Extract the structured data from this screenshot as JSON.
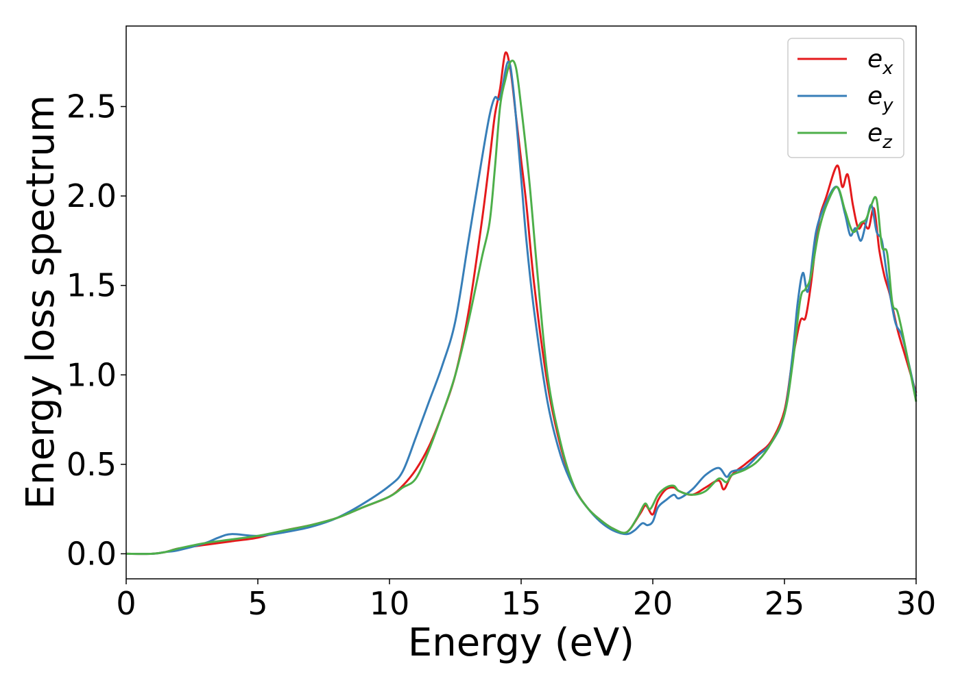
{
  "chart_data": {
    "type": "line",
    "title": "",
    "xlabel": "Energy (eV)",
    "ylabel": "Energy loss spectrum",
    "xlim": [
      0,
      30
    ],
    "ylim": [
      -0.14,
      2.95
    ],
    "xticks": [
      "0",
      "5",
      "10",
      "15",
      "20",
      "25",
      "30"
    ],
    "yticks": [
      "0.0",
      "0.5",
      "1.0",
      "1.5",
      "2.0",
      "2.5"
    ],
    "grid": false,
    "legend_position": "top-right",
    "series": [
      {
        "name": "e_x",
        "label_base": "e",
        "label_sub": "x",
        "color": "#e41a1c",
        "x": [
          0,
          1,
          1.5,
          2,
          3,
          4,
          5,
          6,
          7,
          8,
          9,
          10,
          10.5,
          11,
          11.5,
          12,
          12.5,
          13,
          13.5,
          13.8,
          14,
          14.2,
          14.4,
          14.6,
          14.8,
          15,
          15.2,
          15.5,
          16,
          16.5,
          17,
          17.5,
          18,
          18.5,
          19,
          19.5,
          19.7,
          19.8,
          20,
          20.2,
          20.5,
          20.8,
          21,
          21.5,
          22,
          22.5,
          22.7,
          23,
          23.5,
          24,
          24.5,
          25,
          25.3,
          25.6,
          25.8,
          26,
          26.3,
          26.6,
          27,
          27.2,
          27.4,
          27.6,
          27.8,
          28,
          28.2,
          28.4,
          28.6,
          28.8,
          29,
          29.3,
          29.6,
          30
        ],
        "y": [
          0,
          0,
          0.01,
          0.03,
          0.05,
          0.07,
          0.09,
          0.13,
          0.16,
          0.2,
          0.26,
          0.32,
          0.38,
          0.47,
          0.6,
          0.78,
          1.0,
          1.35,
          1.85,
          2.2,
          2.45,
          2.6,
          2.8,
          2.7,
          2.45,
          2.2,
          1.95,
          1.5,
          0.95,
          0.6,
          0.38,
          0.26,
          0.19,
          0.14,
          0.12,
          0.22,
          0.27,
          0.26,
          0.22,
          0.3,
          0.36,
          0.37,
          0.35,
          0.33,
          0.37,
          0.41,
          0.36,
          0.44,
          0.5,
          0.56,
          0.63,
          0.8,
          1.08,
          1.3,
          1.32,
          1.5,
          1.85,
          2.0,
          2.17,
          2.05,
          2.12,
          1.95,
          1.82,
          1.85,
          1.82,
          1.93,
          1.7,
          1.55,
          1.45,
          1.25,
          1.1,
          0.9
        ]
      },
      {
        "name": "e_y",
        "label_base": "e",
        "label_sub": "y",
        "color": "#377eb8",
        "x": [
          0,
          1,
          1.5,
          2,
          3,
          3.5,
          4,
          5,
          6,
          7,
          8,
          9,
          10,
          10.5,
          11,
          11.5,
          12,
          12.5,
          13,
          13.5,
          13.8,
          14,
          14.2,
          14.5,
          14.7,
          15,
          15.2,
          15.5,
          16,
          16.5,
          17,
          17.5,
          18,
          18.5,
          19,
          19.3,
          19.6,
          19.8,
          20,
          20.2,
          20.5,
          20.8,
          21,
          21.5,
          22,
          22.5,
          22.8,
          23,
          23.5,
          24,
          24.5,
          25,
          25.3,
          25.5,
          25.7,
          25.9,
          26.2,
          26.6,
          27,
          27.3,
          27.5,
          27.7,
          27.9,
          28.1,
          28.3,
          28.5,
          28.7,
          28.9,
          29.2,
          29.5,
          30
        ],
        "y": [
          0,
          0,
          0.01,
          0.02,
          0.06,
          0.09,
          0.11,
          0.1,
          0.12,
          0.15,
          0.2,
          0.28,
          0.38,
          0.46,
          0.65,
          0.85,
          1.05,
          1.3,
          1.75,
          2.2,
          2.45,
          2.55,
          2.55,
          2.75,
          2.6,
          2.1,
          1.75,
          1.35,
          0.85,
          0.55,
          0.37,
          0.26,
          0.18,
          0.13,
          0.11,
          0.13,
          0.17,
          0.16,
          0.18,
          0.26,
          0.3,
          0.33,
          0.31,
          0.36,
          0.44,
          0.48,
          0.43,
          0.46,
          0.48,
          0.55,
          0.62,
          0.78,
          1.1,
          1.4,
          1.57,
          1.47,
          1.8,
          1.97,
          2.05,
          1.9,
          1.78,
          1.82,
          1.75,
          1.85,
          1.95,
          1.8,
          1.75,
          1.55,
          1.3,
          1.2,
          0.88
        ]
      },
      {
        "name": "e_z",
        "label_base": "e",
        "label_sub": "z",
        "color": "#4daf4a",
        "x": [
          0,
          1,
          1.5,
          2,
          3,
          4,
          5,
          6,
          7,
          8,
          9,
          10,
          10.5,
          11,
          11.5,
          12,
          12.5,
          13,
          13.5,
          13.8,
          14,
          14.2,
          14.4,
          14.6,
          14.8,
          15,
          15.3,
          15.6,
          16,
          16.5,
          17,
          17.5,
          18,
          18.5,
          19,
          19.4,
          19.7,
          19.9,
          20.2,
          20.5,
          20.8,
          21,
          21.5,
          22,
          22.5,
          22.8,
          23,
          23.5,
          24,
          24.5,
          25,
          25.3,
          25.6,
          25.8,
          26,
          26.3,
          26.6,
          27,
          27.3,
          27.6,
          27.9,
          28.1,
          28.3,
          28.5,
          28.7,
          28.9,
          29.1,
          29.3,
          29.6,
          30
        ],
        "y": [
          0,
          0,
          0.01,
          0.03,
          0.06,
          0.08,
          0.1,
          0.13,
          0.16,
          0.2,
          0.26,
          0.32,
          0.37,
          0.42,
          0.58,
          0.78,
          1.0,
          1.3,
          1.65,
          1.85,
          2.15,
          2.5,
          2.65,
          2.75,
          2.72,
          2.5,
          2.1,
          1.6,
          1.0,
          0.62,
          0.38,
          0.26,
          0.19,
          0.14,
          0.12,
          0.2,
          0.28,
          0.25,
          0.33,
          0.37,
          0.38,
          0.35,
          0.33,
          0.35,
          0.42,
          0.4,
          0.44,
          0.47,
          0.52,
          0.62,
          0.78,
          1.05,
          1.42,
          1.48,
          1.55,
          1.8,
          1.95,
          2.05,
          1.92,
          1.8,
          1.85,
          1.87,
          1.95,
          1.98,
          1.72,
          1.68,
          1.4,
          1.35,
          1.15,
          0.85
        ]
      }
    ]
  }
}
